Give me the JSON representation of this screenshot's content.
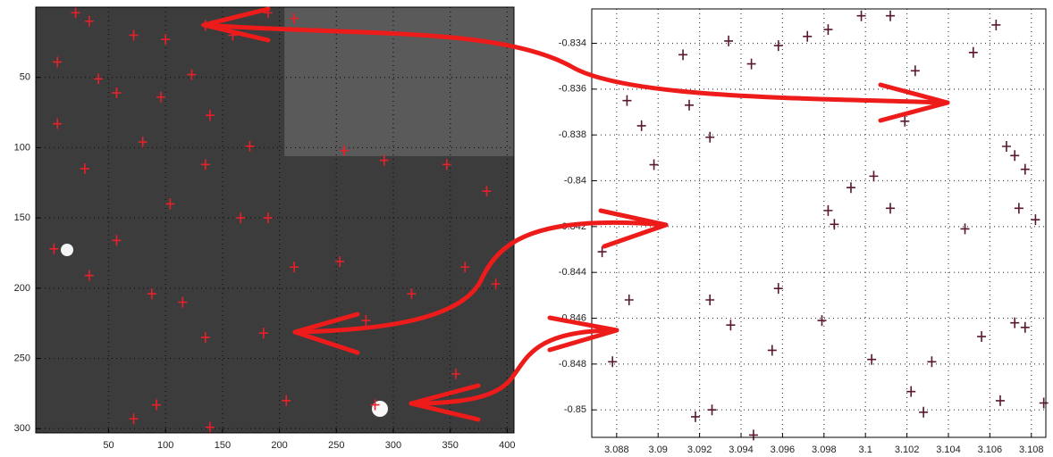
{
  "chart_data": [
    {
      "type": "scatter",
      "image": true,
      "y_inverted": true,
      "grid": true,
      "color": "#e8202a",
      "xlim": [
        -14,
        406
      ],
      "ylim": [
        0,
        303
      ],
      "xticks": [
        50,
        100,
        150,
        200,
        250,
        300,
        350,
        400
      ],
      "yticks": [
        50,
        100,
        150,
        200,
        250,
        300
      ],
      "x": [
        21,
        33,
        72,
        100,
        135,
        159,
        190,
        213,
        5,
        41,
        57,
        96,
        123,
        139,
        174,
        5,
        29,
        80,
        135,
        166,
        190,
        257,
        292,
        347,
        382,
        2,
        33,
        88,
        115,
        135,
        186,
        213,
        253,
        276,
        316,
        363,
        390,
        92,
        139,
        72,
        206,
        284,
        355,
        104,
        57
      ],
      "values": [
        4,
        10,
        20,
        23,
        13,
        20,
        4,
        8,
        39,
        51,
        61,
        64,
        48,
        77,
        99,
        83,
        115,
        96,
        112,
        150,
        150,
        102,
        109,
        112,
        131,
        172,
        191,
        204,
        210,
        235,
        232,
        185,
        181,
        223,
        204,
        185,
        197,
        283,
        299,
        293,
        280,
        283,
        261,
        140,
        166
      ]
    },
    {
      "type": "scatter",
      "image": false,
      "y_inverted": false,
      "grid": true,
      "color": "#5a1830",
      "xlim": [
        3.0868,
        3.1087
      ],
      "ylim": [
        -0.8512,
        -0.8325
      ],
      "xticks": [
        3.088,
        3.09,
        3.092,
        3.094,
        3.096,
        3.098,
        3.1,
        3.102,
        3.104,
        3.106,
        3.108
      ],
      "yticks": [
        -0.834,
        -0.836,
        -0.838,
        -0.84,
        -0.842,
        -0.844,
        -0.846,
        -0.848,
        -0.85
      ],
      "x": [
        3.0885,
        3.0892,
        3.0898,
        3.0912,
        3.0915,
        3.0925,
        3.0934,
        3.0945,
        3.0958,
        3.0972,
        3.0982,
        3.0998,
        3.1012,
        3.1024,
        3.1019,
        3.1052,
        3.1063,
        3.1068,
        3.1072,
        3.1077,
        3.1082,
        3.0993,
        3.1004,
        3.1012,
        3.0982,
        3.0985,
        3.1048,
        3.1074,
        3.0873,
        3.0886,
        3.0878,
        3.0925,
        3.0935,
        3.0979,
        3.0958,
        3.1003,
        3.1022,
        3.1032,
        3.1056,
        3.1072,
        3.1077,
        3.1086,
        3.0955,
        3.0918,
        3.0926,
        3.0946,
        3.1028,
        3.1065
      ],
      "values": [
        -0.8365,
        -0.8376,
        -0.8393,
        -0.8345,
        -0.8367,
        -0.8381,
        -0.8339,
        -0.8349,
        -0.8341,
        -0.8337,
        -0.8334,
        -0.8328,
        -0.8328,
        -0.8352,
        -0.8374,
        -0.8344,
        -0.8332,
        -0.8385,
        -0.8389,
        -0.8395,
        -0.8417,
        -0.8403,
        -0.8398,
        -0.8412,
        -0.8413,
        -0.8419,
        -0.8421,
        -0.8412,
        -0.8431,
        -0.8452,
        -0.8479,
        -0.8452,
        -0.8463,
        -0.8461,
        -0.8447,
        -0.8478,
        -0.8492,
        -0.8479,
        -0.8468,
        -0.8462,
        -0.8464,
        -0.8497,
        -0.8474,
        -0.8503,
        -0.85,
        -0.8511,
        -0.8501,
        -0.8496
      ]
    }
  ]
}
